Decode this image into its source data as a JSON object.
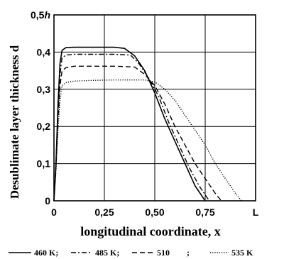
{
  "chart_data": {
    "type": "line",
    "xlabel": "longitudinal coordinate, x",
    "ylabel": "Desublimate layer thickness d",
    "xlim": [
      0,
      1.0
    ],
    "ylim": [
      0,
      0.5
    ],
    "x_ticks": [
      {
        "value": 0,
        "label": "0"
      },
      {
        "value": 0.25,
        "label": "0,25"
      },
      {
        "value": 0.5,
        "label": "0,50"
      },
      {
        "value": 0.75,
        "label": "0,75"
      },
      {
        "value": 1.0,
        "label": "L"
      }
    ],
    "y_ticks": [
      {
        "value": 0,
        "label": "0"
      },
      {
        "value": 0.1,
        "label": "0,1"
      },
      {
        "value": 0.2,
        "label": "0,2"
      },
      {
        "value": 0.3,
        "label": "0,3"
      },
      {
        "value": 0.4,
        "label": "0,4"
      },
      {
        "value": 0.5,
        "label": "0,5h"
      }
    ],
    "grid": true,
    "legend_position": "bottom",
    "series": [
      {
        "name": "460 K;",
        "style": "solid",
        "x": [
          0,
          0.01,
          0.02,
          0.03,
          0.04,
          0.06,
          0.1,
          0.2,
          0.3,
          0.35,
          0.4,
          0.45,
          0.5,
          0.55,
          0.6,
          0.65,
          0.7,
          0.75
        ],
        "y": [
          0,
          0.1,
          0.26,
          0.37,
          0.405,
          0.412,
          0.413,
          0.413,
          0.413,
          0.41,
          0.39,
          0.35,
          0.29,
          0.22,
          0.16,
          0.1,
          0.04,
          0.0
        ]
      },
      {
        "name": "485 K;",
        "style": "dashdot",
        "x": [
          0,
          0.01,
          0.02,
          0.03,
          0.04,
          0.06,
          0.1,
          0.2,
          0.3,
          0.38,
          0.42,
          0.47,
          0.52,
          0.57,
          0.62,
          0.67,
          0.72,
          0.77
        ],
        "y": [
          0,
          0.1,
          0.24,
          0.34,
          0.385,
          0.392,
          0.394,
          0.394,
          0.394,
          0.392,
          0.37,
          0.33,
          0.28,
          0.21,
          0.15,
          0.09,
          0.04,
          0.0
        ]
      },
      {
        "name": "510",
        "style": "dashed",
        "x": [
          0,
          0.01,
          0.02,
          0.03,
          0.04,
          0.06,
          0.1,
          0.2,
          0.3,
          0.4,
          0.45,
          0.5,
          0.55,
          0.6,
          0.65,
          0.7,
          0.75,
          0.8,
          0.83
        ],
        "y": [
          0,
          0.09,
          0.22,
          0.31,
          0.35,
          0.358,
          0.362,
          0.362,
          0.362,
          0.36,
          0.34,
          0.31,
          0.26,
          0.2,
          0.15,
          0.1,
          0.06,
          0.02,
          0.0
        ]
      },
      {
        "name": "535 K",
        "style": "dotted",
        "x": [
          0,
          0.01,
          0.02,
          0.03,
          0.04,
          0.06,
          0.1,
          0.2,
          0.3,
          0.4,
          0.45,
          0.5,
          0.55,
          0.6,
          0.65,
          0.7,
          0.75,
          0.8,
          0.85,
          0.9,
          0.93
        ],
        "y": [
          0,
          0.08,
          0.19,
          0.27,
          0.31,
          0.318,
          0.322,
          0.324,
          0.325,
          0.325,
          0.325,
          0.32,
          0.3,
          0.27,
          0.23,
          0.19,
          0.15,
          0.1,
          0.06,
          0.02,
          0.0
        ]
      }
    ],
    "legend_entries": [
      "460 K;",
      "485 K;",
      "510",
      ";",
      "535 K"
    ]
  }
}
